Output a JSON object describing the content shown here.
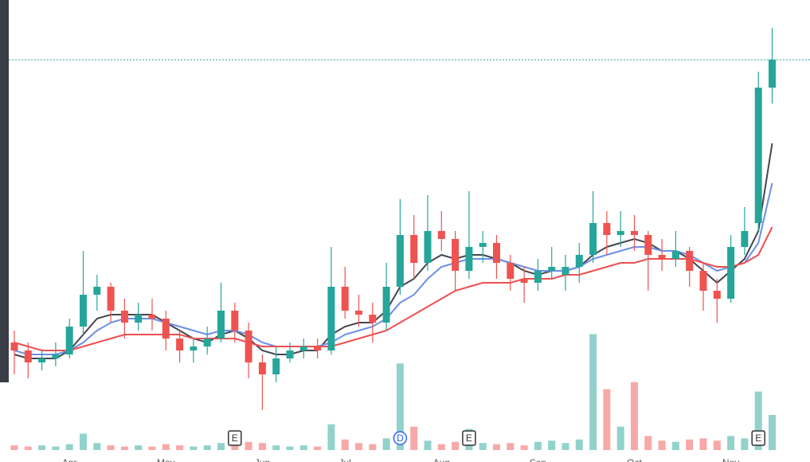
{
  "chart_data": {
    "type": "candlestick",
    "categories": [
      null,
      null,
      null,
      null,
      "Apr",
      null,
      null,
      null,
      null,
      null,
      null,
      "May",
      null,
      null,
      null,
      null,
      null,
      null,
      "Jun",
      null,
      null,
      null,
      null,
      null,
      "Jul",
      null,
      null,
      null,
      null,
      null,
      null,
      "Aug",
      null,
      null,
      null,
      null,
      null,
      null,
      "Sep",
      null,
      null,
      null,
      null,
      null,
      null,
      "Oct",
      null,
      null,
      null,
      null,
      null,
      null,
      "Nov",
      null,
      null,
      null
    ],
    "ohlc": [
      [
        30,
        33,
        22,
        28
      ],
      [
        28,
        30,
        21,
        25
      ],
      [
        25,
        28,
        23,
        26
      ],
      [
        26,
        30,
        24,
        27
      ],
      [
        27,
        36,
        26,
        34
      ],
      [
        34,
        53,
        32,
        42
      ],
      [
        42,
        47,
        38,
        44
      ],
      [
        44,
        45,
        35,
        38
      ],
      [
        38,
        41,
        31,
        35
      ],
      [
        35,
        40,
        33,
        37
      ],
      [
        37,
        41,
        33,
        36
      ],
      [
        36,
        38,
        28,
        31
      ],
      [
        31,
        33,
        25,
        28
      ],
      [
        28,
        31,
        25,
        29
      ],
      [
        29,
        34,
        27,
        31
      ],
      [
        31,
        45,
        30,
        38
      ],
      [
        38,
        40,
        30,
        33
      ],
      [
        33,
        35,
        21,
        25
      ],
      [
        25,
        27,
        13,
        22
      ],
      [
        22,
        29,
        20,
        26
      ],
      [
        26,
        30,
        25,
        28
      ],
      [
        28,
        31,
        26,
        29
      ],
      [
        29,
        31,
        26,
        28
      ],
      [
        28,
        54,
        27,
        44
      ],
      [
        44,
        49,
        36,
        38
      ],
      [
        38,
        42,
        34,
        37
      ],
      [
        37,
        40,
        30,
        35
      ],
      [
        35,
        50,
        33,
        44
      ],
      [
        44,
        66,
        42,
        57
      ],
      [
        57,
        62,
        46,
        50
      ],
      [
        50,
        67,
        48,
        58
      ],
      [
        58,
        63,
        53,
        56
      ],
      [
        56,
        58,
        43,
        48
      ],
      [
        48,
        68,
        46,
        54
      ],
      [
        54,
        58,
        50,
        55
      ],
      [
        55,
        57,
        46,
        50
      ],
      [
        50,
        52,
        43,
        46
      ],
      [
        46,
        49,
        40,
        45
      ],
      [
        45,
        51,
        43,
        48
      ],
      [
        48,
        54,
        46,
        49
      ],
      [
        47,
        52,
        43,
        49
      ],
      [
        49,
        55,
        45,
        52
      ],
      [
        52,
        68,
        50,
        60
      ],
      [
        60,
        63,
        52,
        57
      ],
      [
        57,
        63,
        54,
        58
      ],
      [
        58,
        62,
        53,
        57
      ],
      [
        57,
        58,
        43,
        52
      ],
      [
        52,
        56,
        48,
        51
      ],
      [
        51,
        58,
        49,
        53
      ],
      [
        53,
        54,
        44,
        48
      ],
      [
        48,
        50,
        38,
        43
      ],
      [
        43,
        46,
        35,
        41
      ],
      [
        41,
        57,
        40,
        54
      ],
      [
        54,
        64,
        52,
        58
      ],
      [
        60,
        98,
        58,
        94
      ],
      [
        94,
        109,
        90,
        101
      ]
    ],
    "volume": [
      4,
      3,
      4,
      3,
      5,
      14,
      6,
      4,
      3,
      4,
      3,
      5,
      4,
      3,
      4,
      6,
      5,
      7,
      6,
      4,
      3,
      4,
      3,
      22,
      9,
      6,
      5,
      10,
      74,
      20,
      8,
      5,
      7,
      18,
      6,
      5,
      6,
      4,
      7,
      8,
      6,
      9,
      99,
      52,
      20,
      58,
      12,
      8,
      7,
      9,
      10,
      8,
      12,
      10,
      50,
      30
    ],
    "moving_averages": [
      {
        "color": "#434651",
        "values": [
          27,
          26,
          26,
          26,
          28,
          32,
          36,
          37,
          37,
          37,
          37,
          35,
          33,
          31,
          30,
          32,
          33,
          31,
          28,
          27,
          27,
          28,
          28,
          32,
          34,
          35,
          35,
          38,
          44,
          46,
          50,
          52,
          51,
          52,
          52,
          51,
          50,
          48,
          47,
          48,
          48,
          49,
          52,
          54,
          55,
          56,
          55,
          53,
          53,
          51,
          48,
          45,
          48,
          51,
          58,
          80
        ]
      },
      {
        "color": "#6b8fe8",
        "values": [
          28,
          27,
          27,
          27,
          28,
          30,
          33,
          35,
          36,
          36,
          36,
          35,
          34,
          33,
          32,
          33,
          33,
          32,
          30,
          29,
          29,
          29,
          29,
          30,
          32,
          33,
          34,
          36,
          40,
          42,
          46,
          49,
          50,
          51,
          51,
          51,
          50,
          49,
          48,
          48,
          48,
          49,
          51,
          52,
          53,
          54,
          54,
          53,
          53,
          52,
          50,
          48,
          49,
          50,
          55,
          70
        ]
      },
      {
        "color": "#ef4f4f",
        "values": [
          30,
          29,
          28,
          28,
          28,
          29,
          30,
          31,
          32,
          32,
          32,
          32,
          32,
          31,
          31,
          31,
          31,
          30,
          29,
          29,
          29,
          29,
          29,
          29,
          30,
          31,
          32,
          33,
          35,
          37,
          39,
          41,
          43,
          44,
          45,
          45,
          45,
          46,
          46,
          46,
          47,
          47,
          48,
          49,
          50,
          50,
          51,
          51,
          51,
          51,
          50,
          49,
          49,
          50,
          52,
          59
        ]
      }
    ],
    "events": [
      {
        "label": "E",
        "at": 16,
        "style": "box"
      },
      {
        "label": "D",
        "at": 28,
        "style": "circle"
      },
      {
        "label": "E",
        "at": 33,
        "style": "box"
      },
      {
        "label": "E",
        "at": 54,
        "style": "box"
      }
    ],
    "ylim": [
      0,
      116
    ],
    "volume_ylim": [
      0,
      100
    ],
    "up_color": "#26a69a",
    "down_color": "#ef5350",
    "price_line": true
  }
}
